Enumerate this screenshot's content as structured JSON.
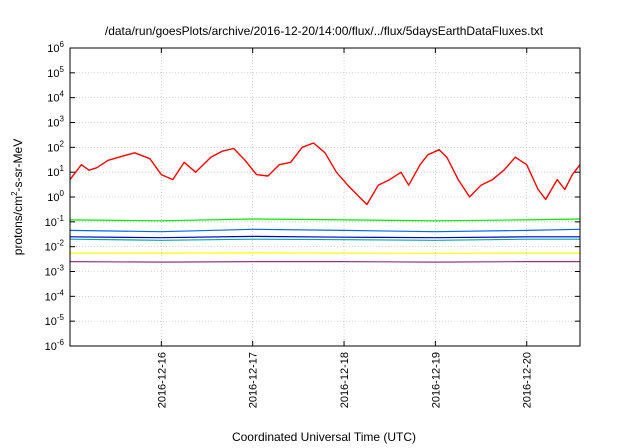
{
  "title": "/data/run/goesPlots/archive/2016-12-20/14:00/flux/../flux/5daysEarthDataFluxes.txt",
  "chart_data": {
    "type": "line",
    "title": "/data/run/goesPlots/archive/2016-12-20/14:00/flux/../flux/5daysEarthDataFluxes.txt",
    "xlabel": "Coordinated Universal Time (UTC)",
    "ylabel": {
      "base": "protons/cm",
      "sup": "2",
      "rest": "-s-sr-MeV"
    },
    "y_scale": "log",
    "ylim": [
      1e-06,
      1000000.0
    ],
    "xlim": [
      "2016-12-15T00:00",
      "2016-12-20T14:00"
    ],
    "grid": true,
    "legend": "none",
    "y_ticks": [
      {
        "base": "10",
        "exp": "-6",
        "value": 1e-06
      },
      {
        "base": "10",
        "exp": "-5",
        "value": 1e-05
      },
      {
        "base": "10",
        "exp": "-4",
        "value": 0.0001
      },
      {
        "base": "10",
        "exp": "-3",
        "value": 0.001
      },
      {
        "base": "10",
        "exp": "-2",
        "value": 0.01
      },
      {
        "base": "10",
        "exp": "-1",
        "value": 0.1
      },
      {
        "base": "10",
        "exp": "0",
        "value": 1
      },
      {
        "base": "10",
        "exp": "1",
        "value": 10
      },
      {
        "base": "10",
        "exp": "2",
        "value": 100
      },
      {
        "base": "10",
        "exp": "3",
        "value": 1000
      },
      {
        "base": "10",
        "exp": "4",
        "value": 10000
      },
      {
        "base": "10",
        "exp": "5",
        "value": 100000
      },
      {
        "base": "10",
        "exp": "6",
        "value": 1000000
      }
    ],
    "x_ticks": [
      "2016-12-16",
      "2016-12-17",
      "2016-12-18",
      "2016-12-19",
      "2016-12-20"
    ],
    "series": [
      {
        "color": "#ff0000",
        "x": [
          "2016-12-15T00:00",
          "2016-12-15T03:00",
          "2016-12-15T05:00",
          "2016-12-15T07:00",
          "2016-12-15T10:00",
          "2016-12-15T14:00",
          "2016-12-15T17:00",
          "2016-12-15T21:00",
          "2016-12-16T00:00",
          "2016-12-16T03:00",
          "2016-12-16T06:00",
          "2016-12-16T09:00",
          "2016-12-16T11:00",
          "2016-12-16T13:00",
          "2016-12-16T16:00",
          "2016-12-16T19:00",
          "2016-12-16T22:00",
          "2016-12-17T01:00",
          "2016-12-17T04:00",
          "2016-12-17T07:00",
          "2016-12-17T10:00",
          "2016-12-17T13:00",
          "2016-12-17T16:00",
          "2016-12-17T19:00",
          "2016-12-17T22:00",
          "2016-12-18T01:00",
          "2016-12-18T04:00",
          "2016-12-18T06:00",
          "2016-12-18T09:00",
          "2016-12-18T12:00",
          "2016-12-18T15:00",
          "2016-12-18T17:00",
          "2016-12-18T20:00",
          "2016-12-18T22:00",
          "2016-12-19T01:00",
          "2016-12-19T03:00",
          "2016-12-19T06:00",
          "2016-12-19T09:00",
          "2016-12-19T12:00",
          "2016-12-19T15:00",
          "2016-12-19T18:00",
          "2016-12-19T21:00",
          "2016-12-20T00:00",
          "2016-12-20T03:00",
          "2016-12-20T05:00",
          "2016-12-20T08:00",
          "2016-12-20T10:00",
          "2016-12-20T12:00",
          "2016-12-20T14:00"
        ],
        "values": [
          5,
          20,
          12,
          15,
          30,
          45,
          60,
          35,
          8,
          5,
          25,
          10,
          20,
          40,
          70,
          90,
          30,
          8,
          7,
          20,
          25,
          100,
          150,
          60,
          10,
          3,
          1,
          0.5,
          3,
          5,
          10,
          3,
          20,
          50,
          80,
          40,
          5,
          1,
          3,
          5,
          12,
          40,
          20,
          2,
          0.8,
          5,
          2,
          8,
          20
        ]
      },
      {
        "color": "#00ee00",
        "x": [
          "2016-12-15T00:00",
          "2016-12-16T00:00",
          "2016-12-17T00:00",
          "2016-12-18T00:00",
          "2016-12-19T00:00",
          "2016-12-20T00:00",
          "2016-12-20T14:00"
        ],
        "values": [
          0.12,
          0.11,
          0.13,
          0.12,
          0.11,
          0.12,
          0.13
        ]
      },
      {
        "color": "#0066ff",
        "x": [
          "2016-12-15T00:00",
          "2016-12-16T00:00",
          "2016-12-17T00:00",
          "2016-12-18T00:00",
          "2016-12-19T00:00",
          "2016-12-20T00:00",
          "2016-12-20T14:00"
        ],
        "values": [
          0.045,
          0.04,
          0.05,
          0.045,
          0.04,
          0.045,
          0.05
        ]
      },
      {
        "color": "#00aaaa",
        "x": [
          "2016-12-15T00:00",
          "2016-12-16T00:00",
          "2016-12-17T00:00",
          "2016-12-18T00:00",
          "2016-12-19T00:00",
          "2016-12-20T00:00",
          "2016-12-20T14:00"
        ],
        "values": [
          0.02,
          0.018,
          0.02,
          0.019,
          0.018,
          0.02,
          0.02
        ]
      },
      {
        "color": "#0000cc",
        "x": [
          "2016-12-15T00:00",
          "2016-12-16T00:00",
          "2016-12-17T00:00",
          "2016-12-18T00:00",
          "2016-12-19T00:00",
          "2016-12-20T00:00",
          "2016-12-20T14:00"
        ],
        "values": [
          0.025,
          0.023,
          0.026,
          0.024,
          0.023,
          0.025,
          0.025
        ]
      },
      {
        "color": "#ffff00",
        "x": [
          "2016-12-15T00:00",
          "2016-12-16T00:00",
          "2016-12-17T00:00",
          "2016-12-18T00:00",
          "2016-12-19T00:00",
          "2016-12-20T00:00",
          "2016-12-20T14:00"
        ],
        "values": [
          0.0055,
          0.0055,
          0.0056,
          0.0055,
          0.0054,
          0.0055,
          0.0055
        ]
      },
      {
        "color": "#993388",
        "x": [
          "2016-12-15T00:00",
          "2016-12-16T00:00",
          "2016-12-17T00:00",
          "2016-12-18T00:00",
          "2016-12-19T00:00",
          "2016-12-20T00:00",
          "2016-12-20T14:00"
        ],
        "values": [
          0.0025,
          0.0024,
          0.0025,
          0.0025,
          0.0024,
          0.0025,
          0.0025
        ]
      }
    ]
  }
}
